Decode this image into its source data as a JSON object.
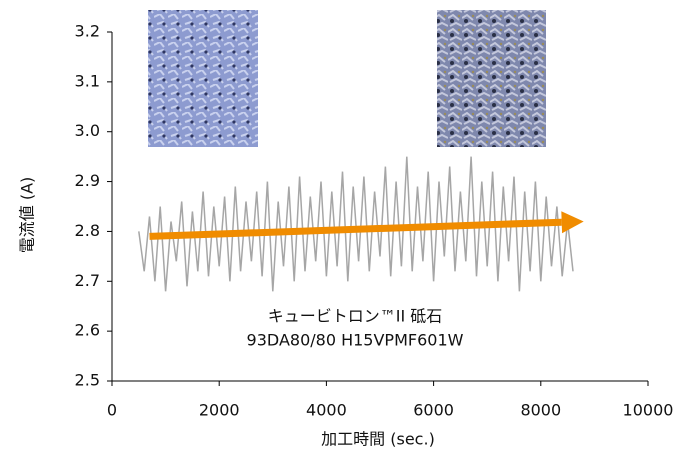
{
  "chart_data": {
    "type": "line",
    "x_label": "加工時間 (sec.)",
    "y_label": "電流値 (A)",
    "annotations": [
      "キュービトロン™II 砥石",
      "93DA80/80 H15VPMF601W"
    ],
    "xlim": [
      0,
      10000
    ],
    "xticks": [
      0,
      2000,
      4000,
      6000,
      8000,
      10000
    ],
    "ylim": [
      2.5,
      3.2
    ],
    "yticks": [
      {
        "value": 2.5,
        "label": "2.5"
      },
      2.6,
      2.7,
      2.8,
      2.9,
      {
        "value": 3.0,
        "label": "3.0"
      },
      3.1,
      3.2
    ],
    "grid": false,
    "series": [
      {
        "color": "#a6a6a6",
        "x": [
          500,
          600,
          700,
          800,
          900,
          1000,
          1100,
          1200,
          1300,
          1400,
          1500,
          1600,
          1700,
          1800,
          1900,
          2000,
          2100,
          2200,
          2300,
          2400,
          2500,
          2600,
          2700,
          2800,
          2900,
          3000,
          3100,
          3200,
          3300,
          3400,
          3500,
          3600,
          3700,
          3800,
          3900,
          4000,
          4100,
          4200,
          4300,
          4400,
          4500,
          4600,
          4700,
          4800,
          4900,
          5000,
          5100,
          5200,
          5300,
          5400,
          5500,
          5600,
          5700,
          5800,
          5900,
          6000,
          6100,
          6200,
          6300,
          6400,
          6500,
          6600,
          6700,
          6800,
          6900,
          7000,
          7100,
          7200,
          7300,
          7400,
          7500,
          7600,
          7700,
          7800,
          7900,
          8000,
          8100,
          8200,
          8300,
          8400,
          8500,
          8600
        ],
        "values": [
          2.8,
          2.72,
          2.83,
          2.7,
          2.85,
          2.68,
          2.82,
          2.74,
          2.86,
          2.69,
          2.84,
          2.72,
          2.88,
          2.71,
          2.85,
          2.73,
          2.87,
          2.7,
          2.89,
          2.72,
          2.86,
          2.74,
          2.88,
          2.71,
          2.9,
          2.68,
          2.86,
          2.73,
          2.89,
          2.7,
          2.91,
          2.72,
          2.87,
          2.74,
          2.9,
          2.71,
          2.88,
          2.73,
          2.92,
          2.7,
          2.89,
          2.74,
          2.91,
          2.72,
          2.88,
          2.75,
          2.93,
          2.71,
          2.9,
          2.73,
          2.95,
          2.72,
          2.89,
          2.74,
          2.92,
          2.7,
          2.9,
          2.75,
          2.93,
          2.72,
          2.88,
          2.74,
          2.95,
          2.71,
          2.9,
          2.73,
          2.92,
          2.7,
          2.89,
          2.74,
          2.91,
          2.68,
          2.88,
          2.72,
          2.9,
          2.7,
          2.87,
          2.73,
          2.85,
          2.71,
          2.82,
          2.72
        ]
      }
    ],
    "trend": {
      "x": [
        700,
        8800
      ],
      "values": [
        2.79,
        2.82
      ],
      "color": "#f08c00"
    }
  }
}
